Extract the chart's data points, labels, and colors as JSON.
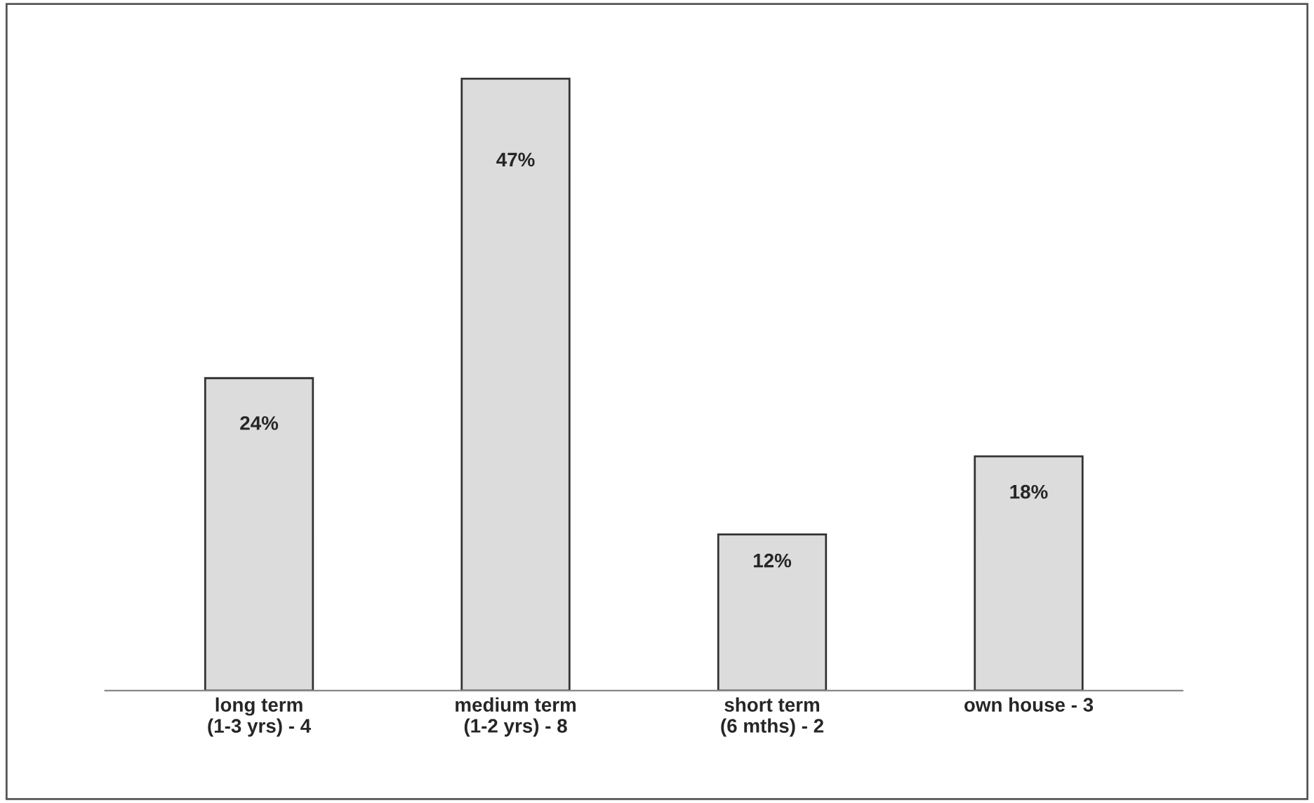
{
  "chart_data": {
    "type": "bar",
    "categories": [
      "long term\n(1-3 yrs) - 4",
      "medium term\n(1-2 yrs) - 8",
      "short term\n(6 mths) - 2",
      "own house - 3"
    ],
    "values": [
      24,
      47,
      12,
      18
    ],
    "value_labels": [
      "24%",
      "47%",
      "12%",
      "18%"
    ],
    "color": "#dcdcdc",
    "tick_labels": "x",
    "grid": false,
    "legend": false
  }
}
